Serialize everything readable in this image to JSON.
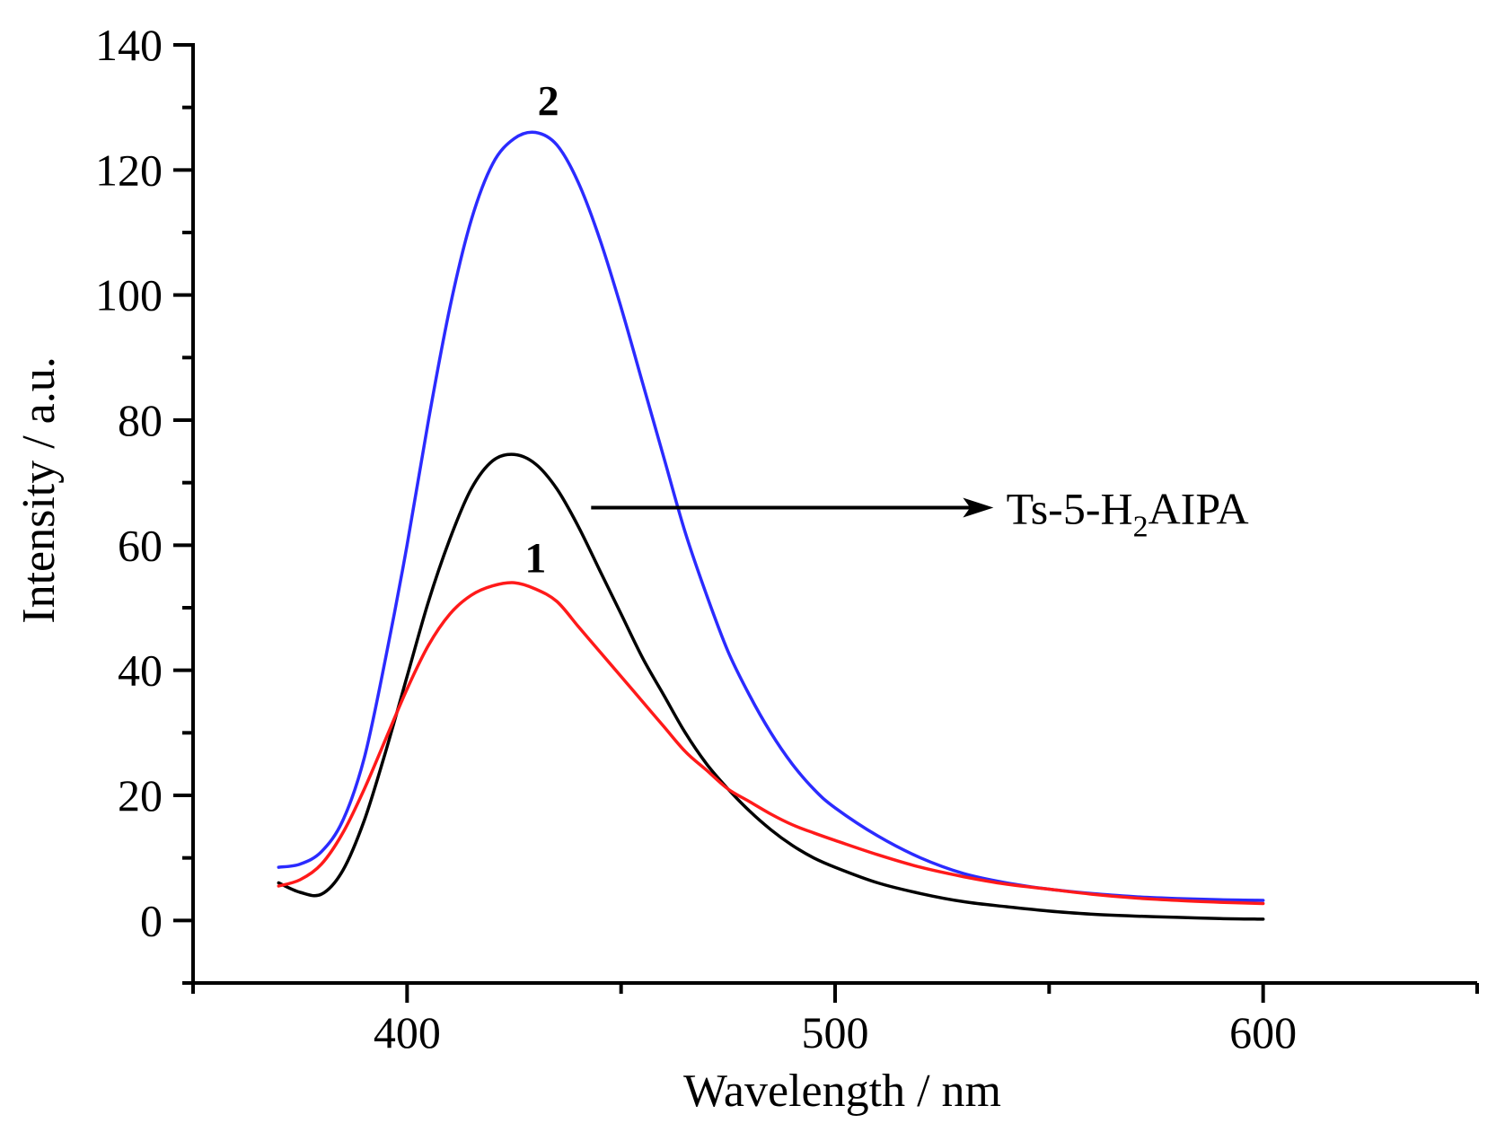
{
  "chart_data": {
    "type": "line",
    "title": "",
    "xlabel": "Wavelength / nm",
    "ylabel": "Intensity / a.u.",
    "xlim": [
      350,
      650
    ],
    "ylim": [
      -10,
      140
    ],
    "x_ticks": [
      400,
      500,
      600
    ],
    "y_ticks": [
      0,
      20,
      40,
      60,
      80,
      100,
      120,
      140
    ],
    "grid": false,
    "legend": "none",
    "series": [
      {
        "name": "2",
        "color": "#2b2bff",
        "x": [
          370,
          375,
          380,
          385,
          390,
          395,
          400,
          405,
          410,
          415,
          420,
          425,
          430,
          435,
          440,
          445,
          450,
          455,
          460,
          465,
          470,
          475,
          480,
          485,
          490,
          495,
          500,
          510,
          520,
          530,
          540,
          550,
          560,
          570,
          580,
          590,
          600
        ],
        "y": [
          8.5,
          9,
          11,
          16,
          26,
          42,
          60,
          80,
          98,
          112,
          121,
          125,
          126,
          124,
          118,
          109,
          98,
          86,
          74,
          62,
          52,
          43,
          36,
          30,
          25,
          21,
          18,
          13.5,
          10,
          7.5,
          6,
          5,
          4.3,
          3.8,
          3.5,
          3.3,
          3.2
        ]
      },
      {
        "name": "Ts-5-H2AIPA",
        "color": "#000000",
        "x": [
          370,
          375,
          380,
          385,
          390,
          395,
          400,
          405,
          410,
          415,
          420,
          425,
          430,
          435,
          440,
          445,
          450,
          455,
          460,
          465,
          470,
          475,
          480,
          485,
          490,
          495,
          500,
          510,
          520,
          530,
          540,
          550,
          560,
          570,
          580,
          590,
          600
        ],
        "y": [
          6,
          4.5,
          4.2,
          8,
          16,
          27,
          39,
          51,
          61,
          69,
          73.5,
          74.5,
          73,
          69,
          63,
          56,
          49,
          42,
          36,
          30,
          25,
          21,
          17.5,
          14.5,
          12,
          10,
          8.5,
          6,
          4.3,
          3,
          2.2,
          1.5,
          1,
          0.7,
          0.5,
          0.3,
          0.2
        ]
      },
      {
        "name": "1",
        "color": "#ff1a1a",
        "x": [
          370,
          375,
          380,
          385,
          390,
          395,
          400,
          405,
          410,
          415,
          420,
          425,
          430,
          435,
          440,
          445,
          450,
          455,
          460,
          465,
          470,
          475,
          480,
          485,
          490,
          495,
          500,
          510,
          520,
          530,
          540,
          550,
          560,
          570,
          580,
          590,
          600
        ],
        "y": [
          5.5,
          6.5,
          9,
          14,
          21,
          29,
          37,
          44,
          49,
          52,
          53.5,
          54,
          53,
          51,
          47,
          43,
          39,
          35,
          31,
          27,
          24,
          21,
          19,
          17,
          15.3,
          14,
          12.8,
          10.5,
          8.5,
          7,
          5.8,
          5,
          4.2,
          3.6,
          3.2,
          2.9,
          2.7
        ]
      }
    ],
    "annotations": [
      {
        "text": "2",
        "x": 433,
        "y": 131
      },
      {
        "text": "1",
        "x": 430,
        "y": 58
      },
      {
        "text": "Ts-5-H",
        "sub": "2",
        "tail": "AIPA",
        "x": 540,
        "y": 66
      }
    ],
    "arrow": {
      "from": [
        443,
        66
      ],
      "to": [
        537,
        66
      ]
    }
  }
}
